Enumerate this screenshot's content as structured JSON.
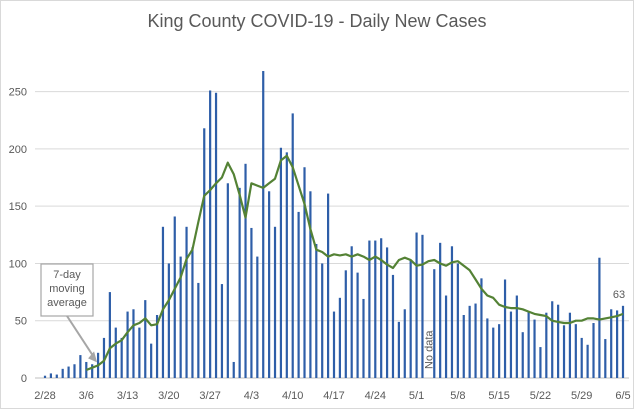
{
  "chart_data": {
    "type": "bar",
    "title": "King County COVID-19 - Daily New Cases",
    "xlabel": "",
    "ylabel": "",
    "ylim": [
      0,
      275
    ],
    "yticks": [
      0,
      50,
      100,
      150,
      200,
      250
    ],
    "grid": true,
    "colors": {
      "bars": "#2e5ea8",
      "line": "#548235",
      "grid": "#d9d9d9",
      "annotation": "#a6a6a6"
    },
    "dates": [
      "2/28",
      "2/29",
      "3/1",
      "3/2",
      "3/3",
      "3/4",
      "3/5",
      "3/6",
      "3/7",
      "3/8",
      "3/9",
      "3/10",
      "3/11",
      "3/12",
      "3/13",
      "3/14",
      "3/15",
      "3/16",
      "3/17",
      "3/18",
      "3/19",
      "3/20",
      "3/21",
      "3/22",
      "3/23",
      "3/24",
      "3/25",
      "3/26",
      "3/27",
      "3/28",
      "3/29",
      "3/30",
      "3/31",
      "4/1",
      "4/2",
      "4/3",
      "4/4",
      "4/5",
      "4/6",
      "4/7",
      "4/8",
      "4/9",
      "4/10",
      "4/11",
      "4/12",
      "4/13",
      "4/14",
      "4/15",
      "4/16",
      "4/17",
      "4/18",
      "4/19",
      "4/20",
      "4/21",
      "4/22",
      "4/23",
      "4/24",
      "4/25",
      "4/26",
      "4/27",
      "4/28",
      "4/29",
      "4/30",
      "5/1",
      "5/2",
      "5/3",
      "5/4",
      "5/5",
      "5/6",
      "5/7",
      "5/8",
      "5/9",
      "5/10",
      "5/11",
      "5/12",
      "5/13",
      "5/14",
      "5/15",
      "5/16",
      "5/17",
      "5/18",
      "5/19",
      "5/20",
      "5/21",
      "5/22",
      "5/23",
      "5/24",
      "5/25",
      "5/26",
      "5/27",
      "5/28",
      "5/29",
      "5/30",
      "5/31",
      "6/1",
      "6/2",
      "6/3",
      "6/4",
      "6/5"
    ],
    "x_tick_labels": [
      "2/28",
      "3/6",
      "3/13",
      "3/20",
      "3/27",
      "4/3",
      "4/10",
      "4/17",
      "4/24",
      "5/1",
      "5/8",
      "5/15",
      "5/22",
      "5/29",
      "6/5"
    ],
    "series": [
      {
        "name": "Daily new cases",
        "type": "bar",
        "values": [
          2,
          4,
          3,
          8,
          10,
          12,
          20,
          14,
          12,
          22,
          35,
          75,
          44,
          35,
          58,
          60,
          44,
          68,
          30,
          55,
          132,
          100,
          141,
          106,
          132,
          114,
          83,
          218,
          251,
          249,
          82,
          170,
          14,
          166,
          187,
          131,
          106,
          268,
          163,
          132,
          201,
          197,
          231,
          145,
          184,
          163,
          117,
          100,
          161,
          58,
          70,
          94,
          115,
          92,
          69,
          120,
          120,
          122,
          114,
          90,
          49,
          60,
          103,
          127,
          125,
          0,
          95,
          118,
          72,
          115,
          100,
          55,
          63,
          65,
          87,
          52,
          44,
          47,
          86,
          58,
          72,
          40,
          58,
          51,
          27,
          57,
          67,
          64,
          46,
          57,
          47,
          35,
          29,
          48,
          105,
          34,
          60,
          59,
          63
        ]
      },
      {
        "name": "7-day moving average",
        "type": "line",
        "values": [
          null,
          null,
          null,
          null,
          null,
          null,
          null,
          7,
          9,
          11,
          15,
          26,
          30,
          33,
          40,
          46,
          48,
          52,
          46,
          47,
          60,
          68,
          78,
          88,
          104,
          112,
          136,
          159,
          164,
          170,
          175,
          188,
          178,
          160,
          140,
          170,
          168,
          166,
          170,
          174,
          190,
          194,
          184,
          168,
          152,
          130,
          112,
          110,
          106,
          108,
          107,
          108,
          106,
          108,
          106,
          103,
          106,
          103,
          99,
          96,
          103,
          105,
          103,
          98,
          99,
          102,
          103,
          100,
          98,
          101,
          102,
          98,
          94,
          86,
          78,
          72,
          70,
          64,
          62,
          61,
          61,
          60,
          58,
          56,
          55,
          54,
          50,
          49,
          48,
          48,
          50,
          50,
          52,
          52,
          51,
          52,
          53,
          54,
          56
        ]
      }
    ],
    "annotations": [
      {
        "text": "7-day moving average",
        "lines": [
          "7-day",
          "moving",
          "average"
        ],
        "target": "3/8"
      },
      {
        "text": "No data",
        "target": "5/3"
      },
      {
        "text": "63",
        "target": "6/5"
      }
    ]
  }
}
